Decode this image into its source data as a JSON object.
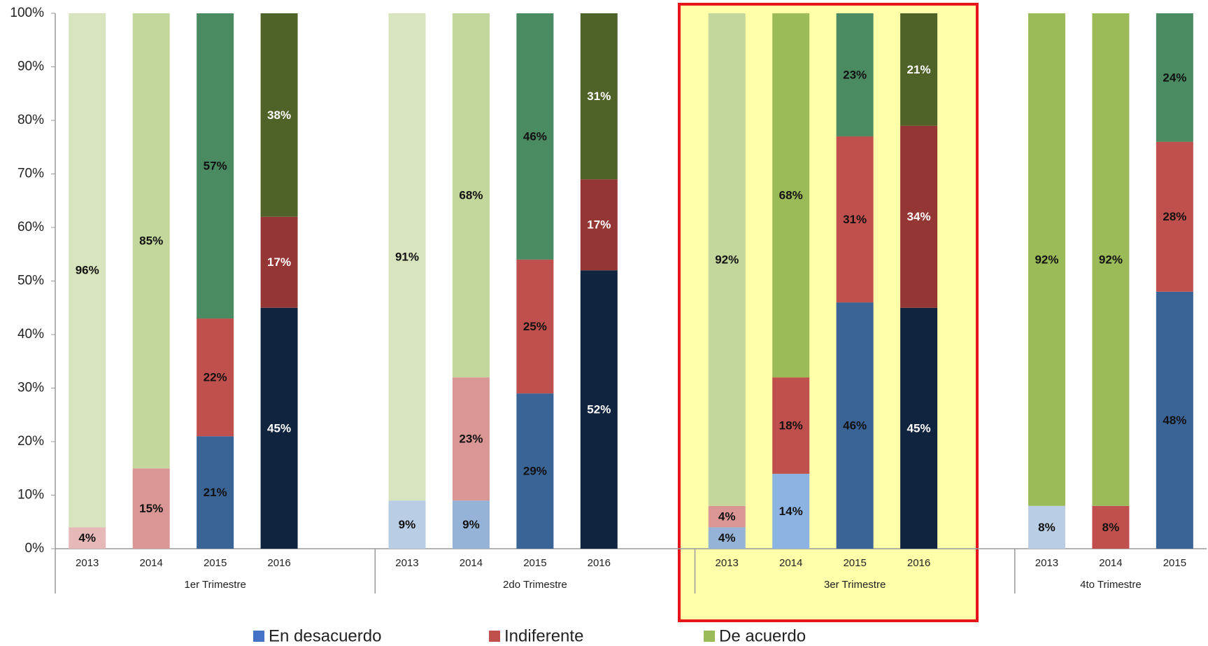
{
  "chart_data": {
    "type": "stacked_bar",
    "groups": [
      {
        "name": "1er Trimestre",
        "categories": [
          "2013",
          "2014",
          "2015",
          "2016"
        ]
      },
      {
        "name": "2do Trimestre",
        "categories": [
          "2013",
          "2014",
          "2015",
          "2016"
        ]
      },
      {
        "name": "3er Trimestre",
        "categories": [
          "2013",
          "2014",
          "2015",
          "2016"
        ]
      },
      {
        "name": "4to Trimestre",
        "categories": [
          "2013",
          "2014",
          "2015"
        ]
      }
    ],
    "series": [
      {
        "name": "En desacuerdo",
        "color": "#4472c4",
        "values": [
          null,
          null,
          21,
          45,
          9,
          9,
          29,
          52,
          4,
          14,
          46,
          45,
          8,
          null,
          48
        ],
        "value_labels": [
          null,
          null,
          "21%",
          "45%",
          "9%",
          "9%",
          "29%",
          "52%",
          "4%",
          "14%",
          "46%",
          "45%",
          "8%",
          null,
          "48%"
        ],
        "colors": [
          "#b9cde5",
          "#95b3d7",
          "#3a6396",
          "#10243f",
          "#b9cde5",
          "#95b3d7",
          "#3a6396",
          "#10243f",
          "#95b3d7",
          "#8db3e2",
          "#3a6396",
          "#10243f",
          "#b9cde5",
          "#95b3d7",
          "#3a6396"
        ]
      },
      {
        "name": "Indiferente",
        "color": "#c0504d",
        "values": [
          4,
          15,
          22,
          17,
          null,
          23,
          25,
          17,
          4,
          18,
          31,
          34,
          null,
          8,
          28
        ],
        "value_labels": [
          "4%",
          "15%",
          "22%",
          "17%",
          null,
          "23%",
          "25%",
          "17%",
          "4%",
          "18%",
          "31%",
          "34%",
          null,
          "8%",
          "28%"
        ],
        "colors": [
          "#e6b9b8",
          "#d99694",
          "#c0504d",
          "#943634",
          "#e6b9b8",
          "#d99694",
          "#c0504d",
          "#943634",
          "#d99694",
          "#c0504d",
          "#c0504d",
          "#943634",
          "#e6b9b8",
          "#c0504d",
          "#c0504d"
        ]
      },
      {
        "name": "De acuerdo",
        "color": "#9bbb59",
        "values": [
          96,
          85,
          57,
          38,
          91,
          68,
          46,
          31,
          92,
          68,
          23,
          21,
          92,
          92,
          24
        ],
        "value_labels": [
          "96%",
          "85%",
          "57%",
          "38%",
          "91%",
          "68%",
          "46%",
          "31%",
          "92%",
          "68%",
          "23%",
          "21%",
          "92%",
          "92%",
          "24%"
        ],
        "colors": [
          "#d7e4bd",
          "#c3d69b",
          "#4b8b62",
          "#4f6228",
          "#d7e4bd",
          "#c3d69b",
          "#4b8b62",
          "#4f6228",
          "#c3d69b",
          "#9bbb59",
          "#4b8b62",
          "#4f6228",
          "#9bbb59",
          "#9bbb59",
          "#4b8b62"
        ]
      }
    ],
    "ylim": [
      0,
      100
    ],
    "yticks": [
      {
        "value": 0,
        "label": "0%"
      },
      {
        "value": 10,
        "label": "10%"
      },
      {
        "value": 20,
        "label": "20%"
      },
      {
        "value": 30,
        "label": "30%"
      },
      {
        "value": 40,
        "label": "40%"
      },
      {
        "value": 50,
        "label": "50%"
      },
      {
        "value": 60,
        "label": "60%"
      },
      {
        "value": 70,
        "label": "70%"
      },
      {
        "value": 80,
        "label": "80%"
      },
      {
        "value": 90,
        "label": "90%"
      },
      {
        "value": 100,
        "label": "100%"
      }
    ],
    "grid": false,
    "legend": "bottom"
  }
}
